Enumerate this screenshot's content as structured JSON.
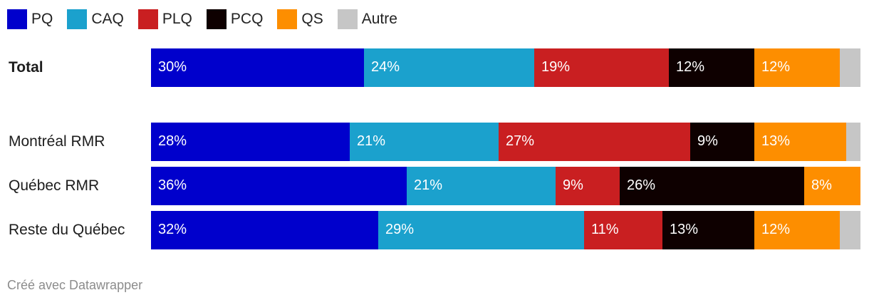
{
  "chart_data": {
    "type": "bar",
    "orientation": "horizontal",
    "stacked": true,
    "xlim": [
      0,
      100
    ],
    "legend_position": "top-left",
    "legend": [
      {
        "name": "PQ",
        "color": "#0000cc"
      },
      {
        "name": "CAQ",
        "color": "#1ba1cd"
      },
      {
        "name": "PLQ",
        "color": "#c91f21"
      },
      {
        "name": "PCQ",
        "color": "#0e0000"
      },
      {
        "name": "QS",
        "color": "#fd8e00"
      },
      {
        "name": "Autre",
        "color": "#c6c6c6"
      }
    ],
    "categories": [
      "Total",
      "Montréal RMR",
      "Québec RMR",
      "Reste du Québec"
    ],
    "series": [
      {
        "name": "PQ",
        "values": [
          30,
          28,
          36,
          32
        ]
      },
      {
        "name": "CAQ",
        "values": [
          24,
          21,
          21,
          29
        ]
      },
      {
        "name": "PLQ",
        "values": [
          19,
          27,
          9,
          11
        ]
      },
      {
        "name": "PCQ",
        "values": [
          12,
          9,
          26,
          13
        ]
      },
      {
        "name": "QS",
        "values": [
          12,
          13,
          8,
          12
        ]
      },
      {
        "name": "Autre",
        "values": [
          3,
          2,
          0,
          3
        ]
      }
    ],
    "data_labels": [
      [
        "30%",
        "24%",
        "19%",
        "12%",
        "12%",
        ""
      ],
      [
        "28%",
        "21%",
        "27%",
        "9%",
        "13%",
        ""
      ],
      [
        "36%",
        "21%",
        "9%",
        "26%",
        "8%",
        ""
      ],
      [
        "32%",
        "29%",
        "11%",
        "13%",
        "12%",
        ""
      ]
    ]
  },
  "footer": "Créé avec Datawrapper"
}
